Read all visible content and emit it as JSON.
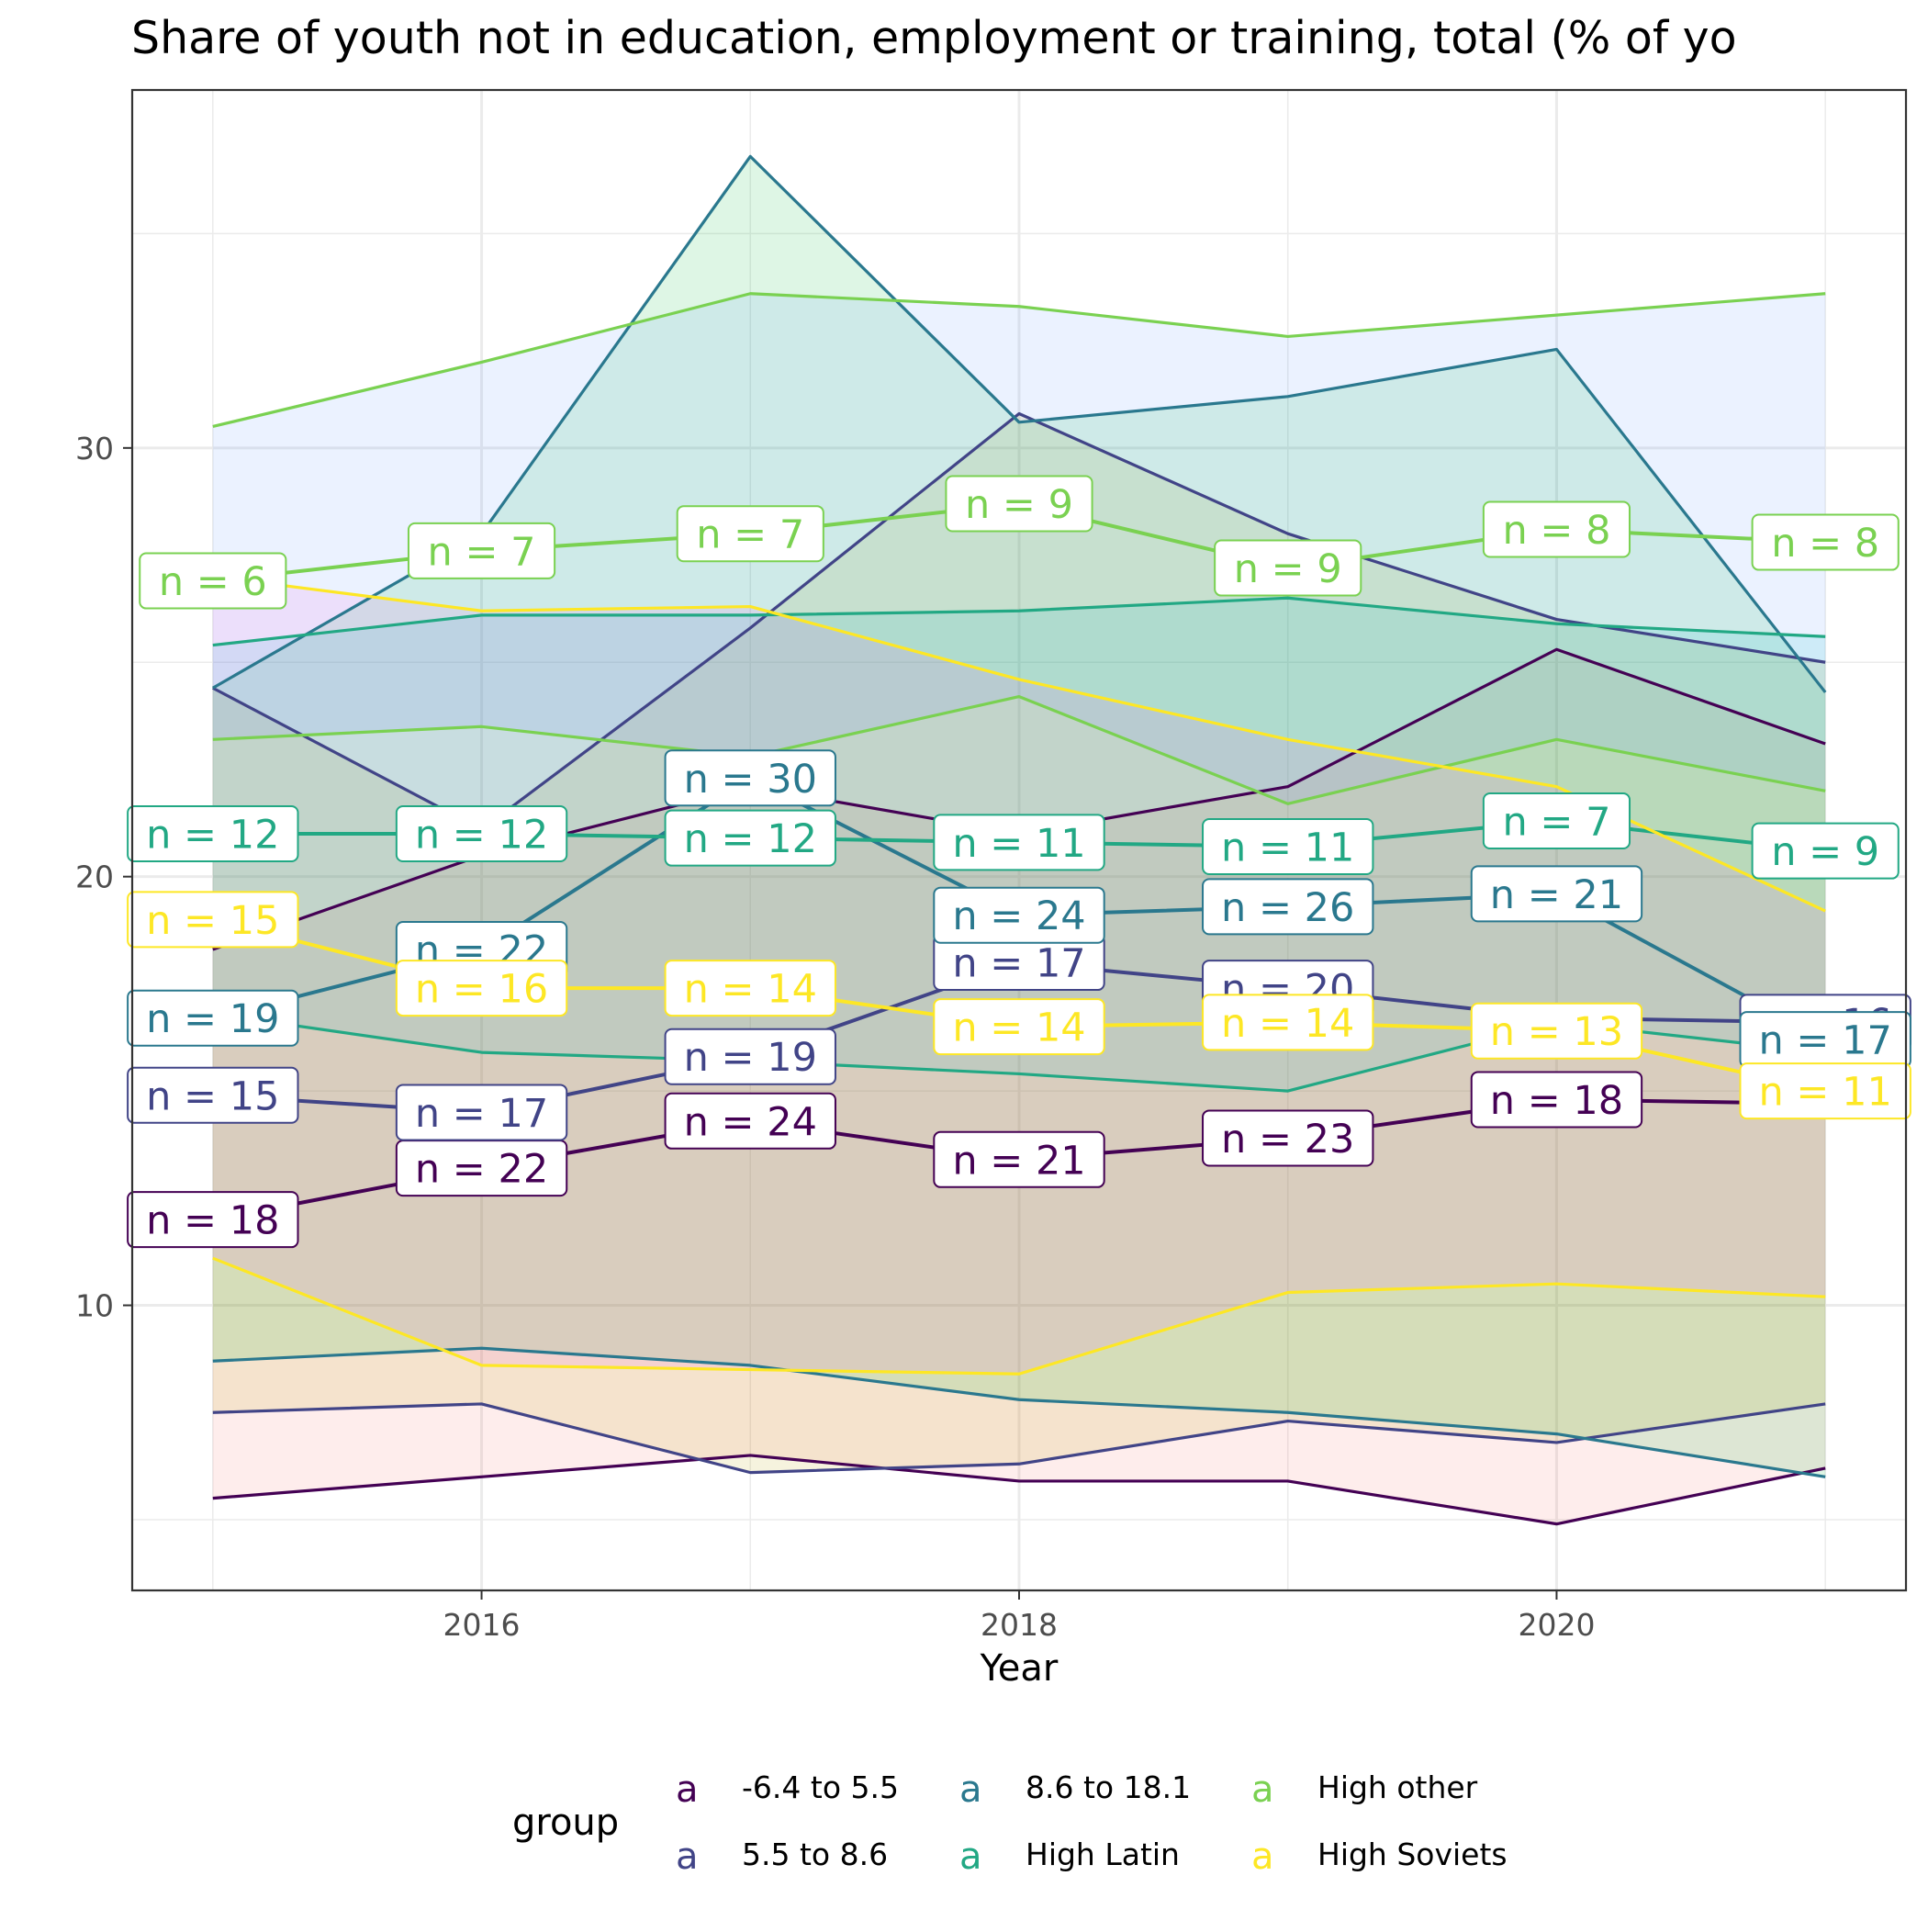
{
  "chart_data": {
    "type": "line",
    "title": "Share of youth not in education, employment or training, total (% of yo",
    "xlabel": "Year",
    "ylabel": "",
    "x": [
      2015,
      2016,
      2017,
      2018,
      2019,
      2020,
      2021
    ],
    "xlim": [
      2014.7,
      2021.3
    ],
    "ylim": [
      3.35,
      38.35
    ],
    "x_ticks": [
      2016,
      2018,
      2020
    ],
    "y_ticks": [
      10,
      20,
      30
    ],
    "y_minor_ticks": [
      5,
      15,
      25,
      35
    ],
    "grid": true,
    "legend": {
      "title": "group",
      "position": "bottom",
      "key_glyph": "a"
    },
    "series": [
      {
        "name": "-6.4 to 5.5",
        "color": "#440154",
        "fill": "#F8766D",
        "mean": [
          12.0,
          13.2,
          14.3,
          13.4,
          13.9,
          14.8,
          14.7
        ],
        "upper": [
          18.3,
          20.5,
          22.1,
          21.0,
          22.1,
          25.3,
          23.1
        ],
        "lower": [
          5.5,
          6.0,
          6.5,
          5.9,
          5.9,
          4.9,
          6.2
        ],
        "n": [
          18,
          22,
          24,
          21,
          23,
          18,
          null
        ]
      },
      {
        "name": "5.5 to 8.6",
        "color": "#414487",
        "fill": "#B79F00",
        "mean": [
          14.9,
          14.5,
          15.8,
          18.0,
          17.4,
          16.7,
          16.6
        ],
        "upper": [
          24.4,
          21.1,
          25.8,
          30.8,
          28.0,
          26.0,
          25.0
        ],
        "lower": [
          7.5,
          7.7,
          6.1,
          6.3,
          7.3,
          6.8,
          7.7
        ],
        "n": [
          15,
          17,
          19,
          17,
          20,
          null,
          16
        ]
      },
      {
        "name": "8.6 to 18.1",
        "color": "#2A788E",
        "fill": "#00BA38",
        "mean": [
          16.7,
          18.3,
          22.3,
          19.1,
          19.3,
          19.6,
          16.2
        ],
        "upper": [
          24.4,
          28.0,
          36.8,
          30.6,
          31.2,
          32.3,
          24.3
        ],
        "lower": [
          8.7,
          9.0,
          8.6,
          7.8,
          7.5,
          7.0,
          6.0
        ],
        "n": [
          19,
          22,
          30,
          24,
          26,
          21,
          17
        ]
      },
      {
        "name": "High Latin",
        "color": "#22A884",
        "fill": "#00BFC4",
        "mean": [
          21.0,
          21.0,
          20.9,
          20.8,
          20.7,
          21.3,
          20.6
        ],
        "upper": [
          25.4,
          26.1,
          26.1,
          26.2,
          26.5,
          25.9,
          25.6
        ],
        "lower": [
          16.8,
          15.9,
          15.7,
          15.4,
          15.0,
          16.6,
          15.9
        ],
        "n": [
          12,
          12,
          12,
          11,
          11,
          7,
          9
        ]
      },
      {
        "name": "High other",
        "color": "#7AD151",
        "fill": "#619CFF",
        "mean": [
          26.9,
          27.6,
          28.0,
          28.7,
          27.2,
          28.1,
          27.8
        ],
        "upper": [
          30.5,
          32.0,
          33.6,
          33.3,
          32.6,
          33.1,
          33.6
        ],
        "lower": [
          23.2,
          23.5,
          22.8,
          24.2,
          21.7,
          23.2,
          22.0
        ],
        "n": [
          6,
          7,
          7,
          9,
          9,
          8,
          8
        ]
      },
      {
        "name": "High Soviets",
        "color": "#FDE725",
        "fill": "#F564E3",
        "mean": [
          19.0,
          17.4,
          17.4,
          16.5,
          16.6,
          16.4,
          15.0
        ],
        "upper": [
          27.0,
          26.2,
          26.3,
          24.6,
          23.2,
          22.1,
          19.2
        ],
        "lower": [
          11.1,
          8.6,
          8.5,
          8.4,
          10.3,
          10.5,
          10.2
        ],
        "n": [
          15,
          16,
          14,
          14,
          14,
          13,
          11
        ]
      }
    ]
  }
}
